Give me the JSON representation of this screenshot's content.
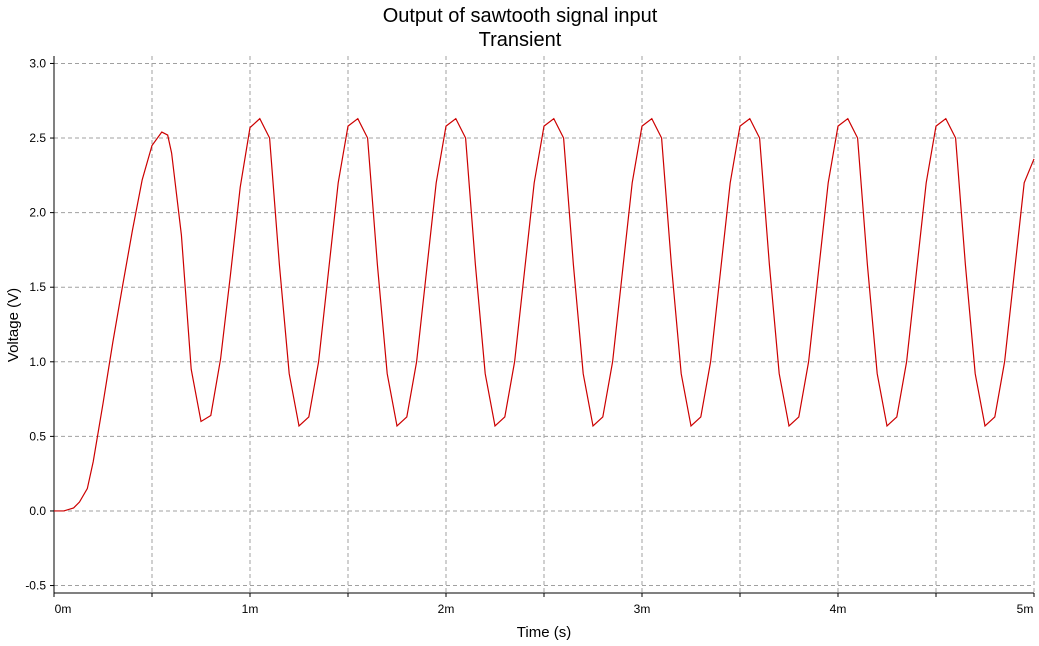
{
  "chart_data": {
    "type": "line",
    "title": "Output of sawtooth signal input",
    "subtitle": "Transient",
    "xlabel": "Time (s)",
    "ylabel": "Voltage (V)",
    "xlim": [
      0,
      0.005
    ],
    "ylim": [
      -0.55,
      3.05
    ],
    "x_ticks": [
      {
        "value": 0,
        "label": "0m"
      },
      {
        "value": 0.0005,
        "label": ""
      },
      {
        "value": 0.001,
        "label": "1m"
      },
      {
        "value": 0.0015,
        "label": ""
      },
      {
        "value": 0.002,
        "label": "2m"
      },
      {
        "value": 0.0025,
        "label": ""
      },
      {
        "value": 0.003,
        "label": "3m"
      },
      {
        "value": 0.0035,
        "label": ""
      },
      {
        "value": 0.004,
        "label": "4m"
      },
      {
        "value": 0.0045,
        "label": ""
      },
      {
        "value": 0.005,
        "label": "5m"
      }
    ],
    "y_ticks": [
      {
        "value": -0.5,
        "label": "-0.5"
      },
      {
        "value": 0.0,
        "label": "0.0"
      },
      {
        "value": 0.5,
        "label": "0.5"
      },
      {
        "value": 1.0,
        "label": "1.0"
      },
      {
        "value": 1.5,
        "label": "1.5"
      },
      {
        "value": 2.0,
        "label": "2.0"
      },
      {
        "value": 2.5,
        "label": "2.5"
      },
      {
        "value": 3.0,
        "label": "3.0"
      }
    ],
    "grid": true,
    "grid_color": "#a0a0a0",
    "series": [
      {
        "color": "#cc0000",
        "x": [
          0,
          5e-05,
          0.0001,
          0.00013,
          0.00017,
          0.0002,
          0.00025,
          0.0003,
          0.00035,
          0.0004,
          0.00045,
          0.0005,
          0.00055,
          0.00058,
          0.0006,
          0.00065,
          0.0007,
          0.00075,
          0.0008,
          0.00085,
          0.0009,
          0.00095,
          0.001,
          0.00105,
          0.0011,
          0.00115,
          0.0012,
          0.00125,
          0.0013,
          0.00135,
          0.0014,
          0.00145,
          0.0015,
          0.00155,
          0.0016,
          0.00165,
          0.0017,
          0.00175,
          0.0018,
          0.00185,
          0.0019,
          0.00195,
          0.002,
          0.00205,
          0.0021,
          0.00215,
          0.0022,
          0.00225,
          0.0023,
          0.00235,
          0.0024,
          0.00245,
          0.0025,
          0.00255,
          0.0026,
          0.00265,
          0.0027,
          0.00275,
          0.0028,
          0.00285,
          0.0029,
          0.00295,
          0.003,
          0.00305,
          0.0031,
          0.00315,
          0.0032,
          0.00325,
          0.0033,
          0.00335,
          0.0034,
          0.00345,
          0.0035,
          0.00355,
          0.0036,
          0.00365,
          0.0037,
          0.00375,
          0.0038,
          0.00385,
          0.0039,
          0.00395,
          0.004,
          0.00405,
          0.0041,
          0.00415,
          0.0042,
          0.00425,
          0.0043,
          0.00435,
          0.0044,
          0.00445,
          0.0045,
          0.00455,
          0.0046,
          0.00465,
          0.0047,
          0.00475,
          0.0048,
          0.00485,
          0.0049,
          0.00495,
          0.005
        ],
        "values": [
          0.0,
          0.0,
          0.02,
          0.06,
          0.15,
          0.33,
          0.72,
          1.13,
          1.51,
          1.88,
          2.22,
          2.45,
          2.54,
          2.52,
          2.4,
          1.85,
          0.95,
          0.6,
          0.64,
          1.02,
          1.58,
          2.17,
          2.57,
          2.63,
          2.5,
          1.65,
          0.92,
          0.57,
          0.63,
          1.0,
          1.6,
          2.2,
          2.58,
          2.63,
          2.5,
          1.65,
          0.92,
          0.57,
          0.63,
          1.0,
          1.6,
          2.2,
          2.58,
          2.63,
          2.5,
          1.65,
          0.92,
          0.57,
          0.63,
          1.0,
          1.6,
          2.2,
          2.58,
          2.63,
          2.5,
          1.65,
          0.92,
          0.57,
          0.63,
          1.0,
          1.6,
          2.2,
          2.58,
          2.63,
          2.5,
          1.65,
          0.92,
          0.57,
          0.63,
          1.0,
          1.6,
          2.2,
          2.58,
          2.63,
          2.5,
          1.65,
          0.92,
          0.57,
          0.63,
          1.0,
          1.6,
          2.2,
          2.58,
          2.63,
          2.5,
          1.65,
          0.92,
          0.57,
          0.63,
          1.0,
          1.6,
          2.2,
          2.58,
          2.63,
          2.5,
          1.65,
          0.92,
          0.57,
          0.63,
          1.0,
          1.6,
          2.2,
          2.36
        ]
      }
    ]
  }
}
